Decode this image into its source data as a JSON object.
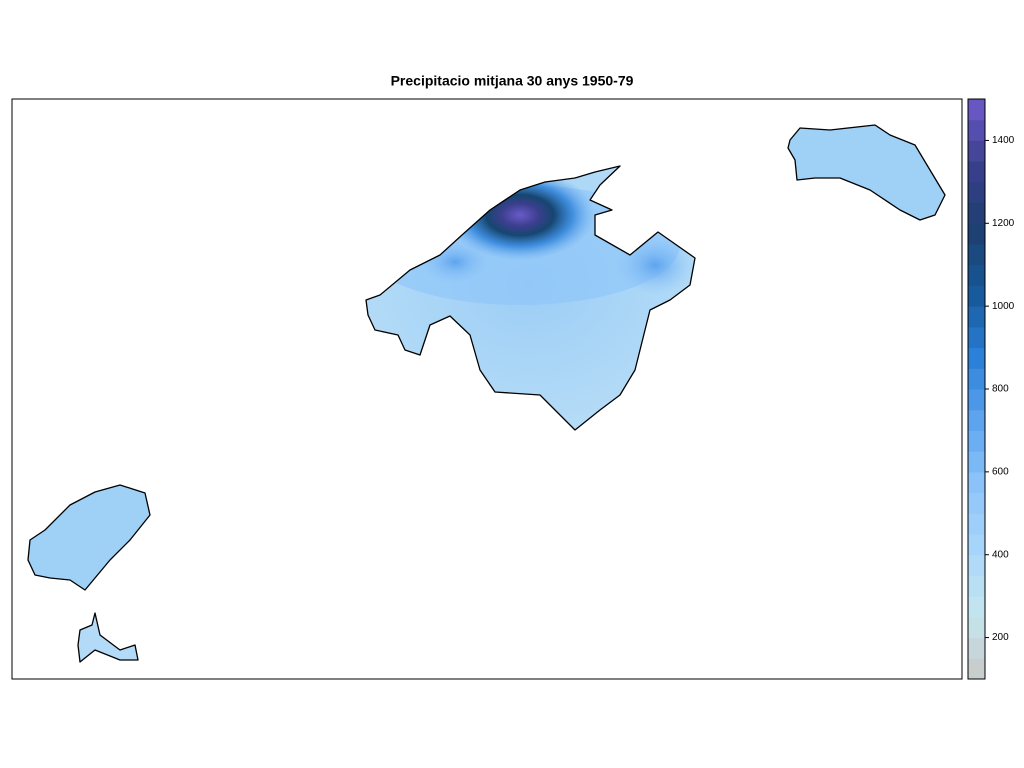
{
  "title": "Precipitacio mitjana 30 anys  1950-79",
  "colorbar": {
    "range": [
      100,
      1500
    ],
    "ticks": [
      200,
      400,
      600,
      800,
      1000,
      1200,
      1400
    ],
    "colors": [
      "#c8c8c8",
      "#c6e6f0",
      "#a9d6fa",
      "#8cc4fa",
      "#5ea4ee",
      "#2a7fd8",
      "#17599a",
      "#1c3f6e",
      "#3b3f8e",
      "#6f5ccc"
    ],
    "bands": 28
  }
}
